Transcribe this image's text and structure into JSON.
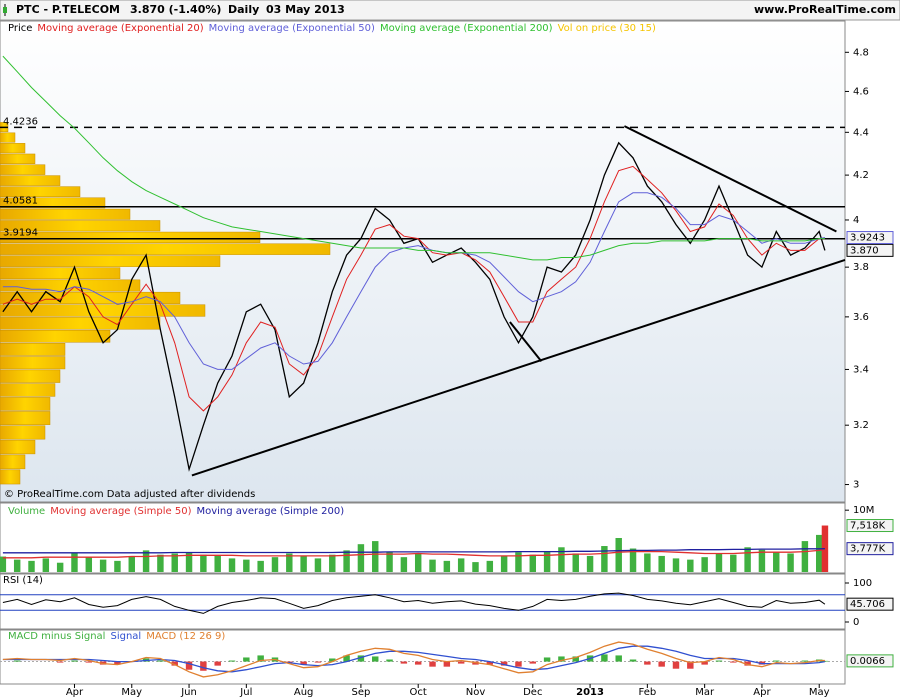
{
  "header": {
    "title": "PTC - P.TELECOM",
    "quote": "3.870 (-1.40%)",
    "period": "Daily",
    "date": "03 May 2013",
    "site": "www.ProRealTime.com"
  },
  "chart_data": [
    {
      "type": "line",
      "log_scale": true,
      "grid": false,
      "annotation": "© ProRealTime.com Data adjusted after dividends",
      "xlim": [
        -1.3,
        13.45
      ],
      "xticks": [
        {
          "value": 0,
          "label": "Apr"
        },
        {
          "value": 1,
          "label": "May"
        },
        {
          "value": 2,
          "label": "Jun"
        },
        {
          "value": 3,
          "label": "Jul"
        },
        {
          "value": 4,
          "label": "Aug"
        },
        {
          "value": 5,
          "label": "Sep"
        },
        {
          "value": 6,
          "label": "Oct"
        },
        {
          "value": 7,
          "label": "Nov"
        },
        {
          "value": 8,
          "label": "Dec"
        },
        {
          "value": 9,
          "label": "2013",
          "bold": true
        },
        {
          "value": 10,
          "label": "Feb"
        },
        {
          "value": 11,
          "label": "Mar"
        },
        {
          "value": 12,
          "label": "Apr"
        },
        {
          "value": 13,
          "label": "May"
        }
      ],
      "ylim": [
        2.95,
        4.95
      ],
      "yticks": [
        3,
        3.2,
        3.4,
        3.6,
        3.8,
        4,
        4.2,
        4.4,
        4.6,
        4.8
      ],
      "x": [
        -1.25,
        -1,
        -0.75,
        -0.5,
        -0.25,
        0,
        0.25,
        0.5,
        0.75,
        1,
        1.25,
        1.5,
        1.75,
        2,
        2.25,
        2.5,
        2.75,
        3,
        3.25,
        3.5,
        3.75,
        4,
        4.25,
        4.5,
        4.75,
        5,
        5.25,
        5.5,
        5.75,
        6,
        6.25,
        6.5,
        6.75,
        7,
        7.25,
        7.5,
        7.75,
        8,
        8.25,
        8.5,
        8.75,
        9,
        9.25,
        9.5,
        9.75,
        10,
        10.25,
        10.5,
        10.75,
        11,
        11.25,
        11.5,
        11.75,
        12,
        12.25,
        12.5,
        12.75,
        13,
        13.1
      ],
      "series": [
        {
          "name": "Price",
          "color": "#000000",
          "last_label": "3.870",
          "values": [
            3.62,
            3.7,
            3.62,
            3.7,
            3.66,
            3.8,
            3.62,
            3.5,
            3.55,
            3.75,
            3.85,
            3.55,
            3.3,
            3.05,
            3.2,
            3.35,
            3.45,
            3.62,
            3.65,
            3.55,
            3.3,
            3.35,
            3.5,
            3.7,
            3.85,
            3.92,
            4.05,
            4.0,
            3.9,
            3.92,
            3.82,
            3.85,
            3.88,
            3.82,
            3.75,
            3.6,
            3.5,
            3.6,
            3.8,
            3.78,
            3.85,
            4.0,
            4.2,
            4.35,
            4.28,
            4.15,
            4.08,
            3.98,
            3.9,
            4.0,
            4.15,
            4.0,
            3.85,
            3.8,
            3.95,
            3.85,
            3.88,
            3.95,
            3.87
          ]
        },
        {
          "name": "Moving average (Exponential 20)",
          "color": "#e02020",
          "values": [
            3.65,
            3.67,
            3.65,
            3.67,
            3.67,
            3.72,
            3.68,
            3.6,
            3.57,
            3.65,
            3.73,
            3.65,
            3.5,
            3.3,
            3.25,
            3.3,
            3.38,
            3.5,
            3.58,
            3.56,
            3.42,
            3.38,
            3.45,
            3.6,
            3.75,
            3.85,
            3.96,
            3.98,
            3.93,
            3.92,
            3.86,
            3.85,
            3.86,
            3.83,
            3.78,
            3.68,
            3.58,
            3.58,
            3.7,
            3.75,
            3.8,
            3.92,
            4.08,
            4.22,
            4.24,
            4.18,
            4.12,
            4.04,
            3.95,
            3.97,
            4.07,
            4.02,
            3.92,
            3.85,
            3.9,
            3.87,
            3.87,
            3.92,
            3.92
          ]
        },
        {
          "name": "Moving average (Exponential 50)",
          "color": "#6060d8",
          "show_last": true,
          "values": [
            3.72,
            3.72,
            3.71,
            3.71,
            3.7,
            3.72,
            3.71,
            3.68,
            3.65,
            3.66,
            3.68,
            3.66,
            3.6,
            3.5,
            3.42,
            3.4,
            3.4,
            3.44,
            3.48,
            3.5,
            3.45,
            3.42,
            3.43,
            3.5,
            3.6,
            3.7,
            3.8,
            3.86,
            3.88,
            3.89,
            3.87,
            3.86,
            3.86,
            3.85,
            3.82,
            3.76,
            3.7,
            3.66,
            3.68,
            3.7,
            3.74,
            3.82,
            3.95,
            4.08,
            4.12,
            4.12,
            4.1,
            4.05,
            3.98,
            3.98,
            4.02,
            4.0,
            3.95,
            3.9,
            3.92,
            3.9,
            3.9,
            3.92,
            3.9243
          ]
        },
        {
          "name": "Moving average (Exponential 200)",
          "color": "#30c030",
          "values": [
            4.78,
            4.7,
            4.62,
            4.55,
            4.48,
            4.42,
            4.35,
            4.28,
            4.22,
            4.17,
            4.13,
            4.1,
            4.07,
            4.04,
            4.01,
            3.99,
            3.97,
            3.96,
            3.95,
            3.94,
            3.93,
            3.92,
            3.91,
            3.9,
            3.89,
            3.88,
            3.88,
            3.88,
            3.88,
            3.87,
            3.87,
            3.86,
            3.86,
            3.86,
            3.86,
            3.85,
            3.84,
            3.83,
            3.83,
            3.84,
            3.84,
            3.85,
            3.87,
            3.89,
            3.9,
            3.9,
            3.91,
            3.91,
            3.91,
            3.91,
            3.92,
            3.92,
            3.92,
            3.91,
            3.91,
            3.91,
            3.91,
            3.92,
            3.92
          ]
        }
      ],
      "volume_profile": {
        "name": "Vol on price (30 15)",
        "color": "#f5c400",
        "levels": [
          3.0,
          3.05,
          3.1,
          3.15,
          3.2,
          3.25,
          3.3,
          3.35,
          3.4,
          3.45,
          3.5,
          3.55,
          3.6,
          3.65,
          3.7,
          3.75,
          3.8,
          3.85,
          3.9,
          3.95,
          4.0,
          4.05,
          4.1,
          4.15,
          4.2,
          4.25,
          4.3,
          4.35,
          4.4
        ],
        "values": [
          20,
          25,
          35,
          45,
          50,
          50,
          55,
          60,
          65,
          65,
          110,
          160,
          205,
          180,
          140,
          120,
          220,
          330,
          260,
          160,
          130,
          105,
          80,
          60,
          45,
          35,
          25,
          15,
          8
        ]
      },
      "hlines": [
        {
          "value": 4.4236,
          "dashed": true
        },
        {
          "value": 4.0581
        },
        {
          "value": 3.9194
        }
      ],
      "trendlines": [
        {
          "x": [
            2.05,
            13.45
          ],
          "y": [
            3.03,
            3.83
          ]
        },
        {
          "x": [
            9.6,
            13.3
          ],
          "y": [
            4.43,
            3.95
          ]
        },
        {
          "x": [
            7.6,
            8.15
          ],
          "y": [
            3.58,
            3.43
          ]
        }
      ]
    },
    {
      "type": "bar",
      "ylim": [
        0,
        11000
      ],
      "yticks": [
        {
          "value": 10000,
          "label": "10M"
        }
      ],
      "series": [
        {
          "name": "Volume",
          "color": "#40b040",
          "last_label": "7,518K",
          "values": [
            2500,
            2000,
            1800,
            2200,
            1500,
            3000,
            2400,
            2000,
            1800,
            2600,
            3500,
            2800,
            3000,
            3200,
            2800,
            2600,
            2200,
            2000,
            1800,
            2400,
            3000,
            2600,
            2200,
            2800,
            3500,
            4500,
            5000,
            3200,
            2400,
            3000,
            2000,
            1800,
            2200,
            1600,
            1800,
            2600,
            3200,
            2800,
            3400,
            4000,
            3000,
            2600,
            4200,
            5500,
            3800,
            3000,
            2600,
            2200,
            2000,
            2400,
            3000,
            2800,
            4000,
            3600,
            3200,
            3000,
            5000,
            6000,
            7518
          ]
        },
        {
          "name": "Moving average (Simple 50)",
          "color": "#e03030",
          "values": [
            2300,
            2300,
            2300,
            2400,
            2400,
            2400,
            2400,
            2400,
            2400,
            2500,
            2500,
            2600,
            2600,
            2700,
            2700,
            2700,
            2700,
            2600,
            2600,
            2600,
            2600,
            2600,
            2600,
            2600,
            2700,
            2800,
            2900,
            2900,
            2900,
            3000,
            2900,
            2900,
            2800,
            2700,
            2600,
            2600,
            2600,
            2700,
            2700,
            2800,
            2900,
            2900,
            3000,
            3200,
            3300,
            3300,
            3300,
            3200,
            3100,
            3000,
            3000,
            3000,
            3100,
            3200,
            3200,
            3200,
            3300,
            3500,
            3600
          ]
        },
        {
          "name": "Moving average (Simple 200)",
          "color": "#2020a0",
          "last_label": "3,777K",
          "values": [
            3100,
            3100,
            3100,
            3100,
            3100,
            3100,
            3100,
            3100,
            3100,
            3100,
            3100,
            3100,
            3150,
            3150,
            3150,
            3150,
            3150,
            3150,
            3150,
            3150,
            3150,
            3150,
            3150,
            3150,
            3200,
            3200,
            3200,
            3250,
            3250,
            3250,
            3250,
            3250,
            3250,
            3250,
            3250,
            3250,
            3300,
            3300,
            3300,
            3300,
            3350,
            3350,
            3400,
            3450,
            3500,
            3500,
            3550,
            3550,
            3600,
            3600,
            3600,
            3650,
            3650,
            3700,
            3700,
            3700,
            3750,
            3750,
            3777
          ]
        }
      ]
    },
    {
      "type": "line",
      "title": "RSI (14)",
      "ylim": [
        0,
        100
      ],
      "yticks": [
        0,
        100
      ],
      "levels": [
        30,
        70
      ],
      "series": [
        {
          "color": "#000000",
          "show_last": true,
          "values": [
            50,
            58,
            45,
            57,
            52,
            62,
            45,
            38,
            42,
            58,
            65,
            58,
            40,
            30,
            22,
            40,
            50,
            55,
            62,
            60,
            48,
            35,
            42,
            55,
            62,
            66,
            70,
            62,
            52,
            55,
            48,
            52,
            54,
            46,
            42,
            35,
            30,
            40,
            58,
            55,
            58,
            66,
            72,
            74,
            68,
            58,
            54,
            48,
            44,
            52,
            60,
            50,
            40,
            38,
            55,
            48,
            50,
            56,
            45.706
          ]
        }
      ]
    },
    {
      "type": "macd",
      "ylim": [
        -0.2,
        0.25
      ],
      "series": [
        {
          "name": "MACD minus Signal",
          "color": "#40b040",
          "negative_color": "#e04040",
          "show_last": true,
          "values": [
            0,
            0.01,
            0,
            0,
            -0.01,
            0.01,
            -0.01,
            -0.03,
            -0.03,
            0,
            0.03,
            0.01,
            -0.04,
            -0.08,
            -0.09,
            -0.04,
            0.01,
            0.04,
            0.06,
            0.04,
            -0.01,
            -0.03,
            -0.01,
            0.03,
            0.06,
            0.06,
            0.05,
            0.02,
            -0.02,
            -0.03,
            -0.05,
            -0.05,
            -0.02,
            -0.03,
            -0.03,
            -0.04,
            -0.05,
            -0.02,
            0.04,
            0.05,
            0.05,
            0.06,
            0.07,
            0.06,
            0.02,
            -0.03,
            -0.05,
            -0.07,
            -0.07,
            -0.03,
            0.01,
            -0.01,
            -0.04,
            -0.03,
            0.01,
            0,
            0.01,
            0.02,
            0.0066
          ]
        },
        {
          "name": "Signal",
          "color": "#3050d0",
          "values": [
            0.02,
            0.02,
            0.02,
            0.02,
            0.02,
            0.02,
            0.02,
            0.01,
            0,
            0,
            0.01,
            0.02,
            0.01,
            -0.02,
            -0.06,
            -0.09,
            -0.1,
            -0.08,
            -0.05,
            -0.02,
            -0.01,
            -0.03,
            -0.04,
            -0.03,
            0,
            0.04,
            0.08,
            0.1,
            0.1,
            0.09,
            0.07,
            0.05,
            0.03,
            0.02,
            0,
            -0.03,
            -0.06,
            -0.08,
            -0.07,
            -0.04,
            -0.01,
            0.03,
            0.08,
            0.13,
            0.15,
            0.15,
            0.13,
            0.1,
            0.06,
            0.03,
            0.03,
            0.03,
            0.01,
            -0.02,
            -0.02,
            -0.02,
            -0.02,
            -0.01,
            0
          ]
        },
        {
          "name": "MACD (12 26 9)",
          "color": "#e08030",
          "values": [
            0.02,
            0.03,
            0.02,
            0.02,
            0.01,
            0.03,
            0.01,
            -0.02,
            -0.03,
            0,
            0.04,
            0.03,
            -0.03,
            -0.1,
            -0.15,
            -0.13,
            -0.09,
            -0.04,
            0.01,
            0.02,
            -0.02,
            -0.06,
            -0.05,
            0,
            0.06,
            0.1,
            0.13,
            0.12,
            0.08,
            0.06,
            0.02,
            0,
            0.01,
            -0.01,
            -0.03,
            -0.07,
            -0.11,
            -0.1,
            -0.03,
            0.01,
            0.04,
            0.09,
            0.15,
            0.19,
            0.17,
            0.12,
            0.08,
            0.03,
            -0.01,
            0,
            0.04,
            0.02,
            -0.03,
            -0.05,
            -0.01,
            -0.02,
            -0.01,
            0.01,
            0.01
          ]
        }
      ]
    }
  ]
}
